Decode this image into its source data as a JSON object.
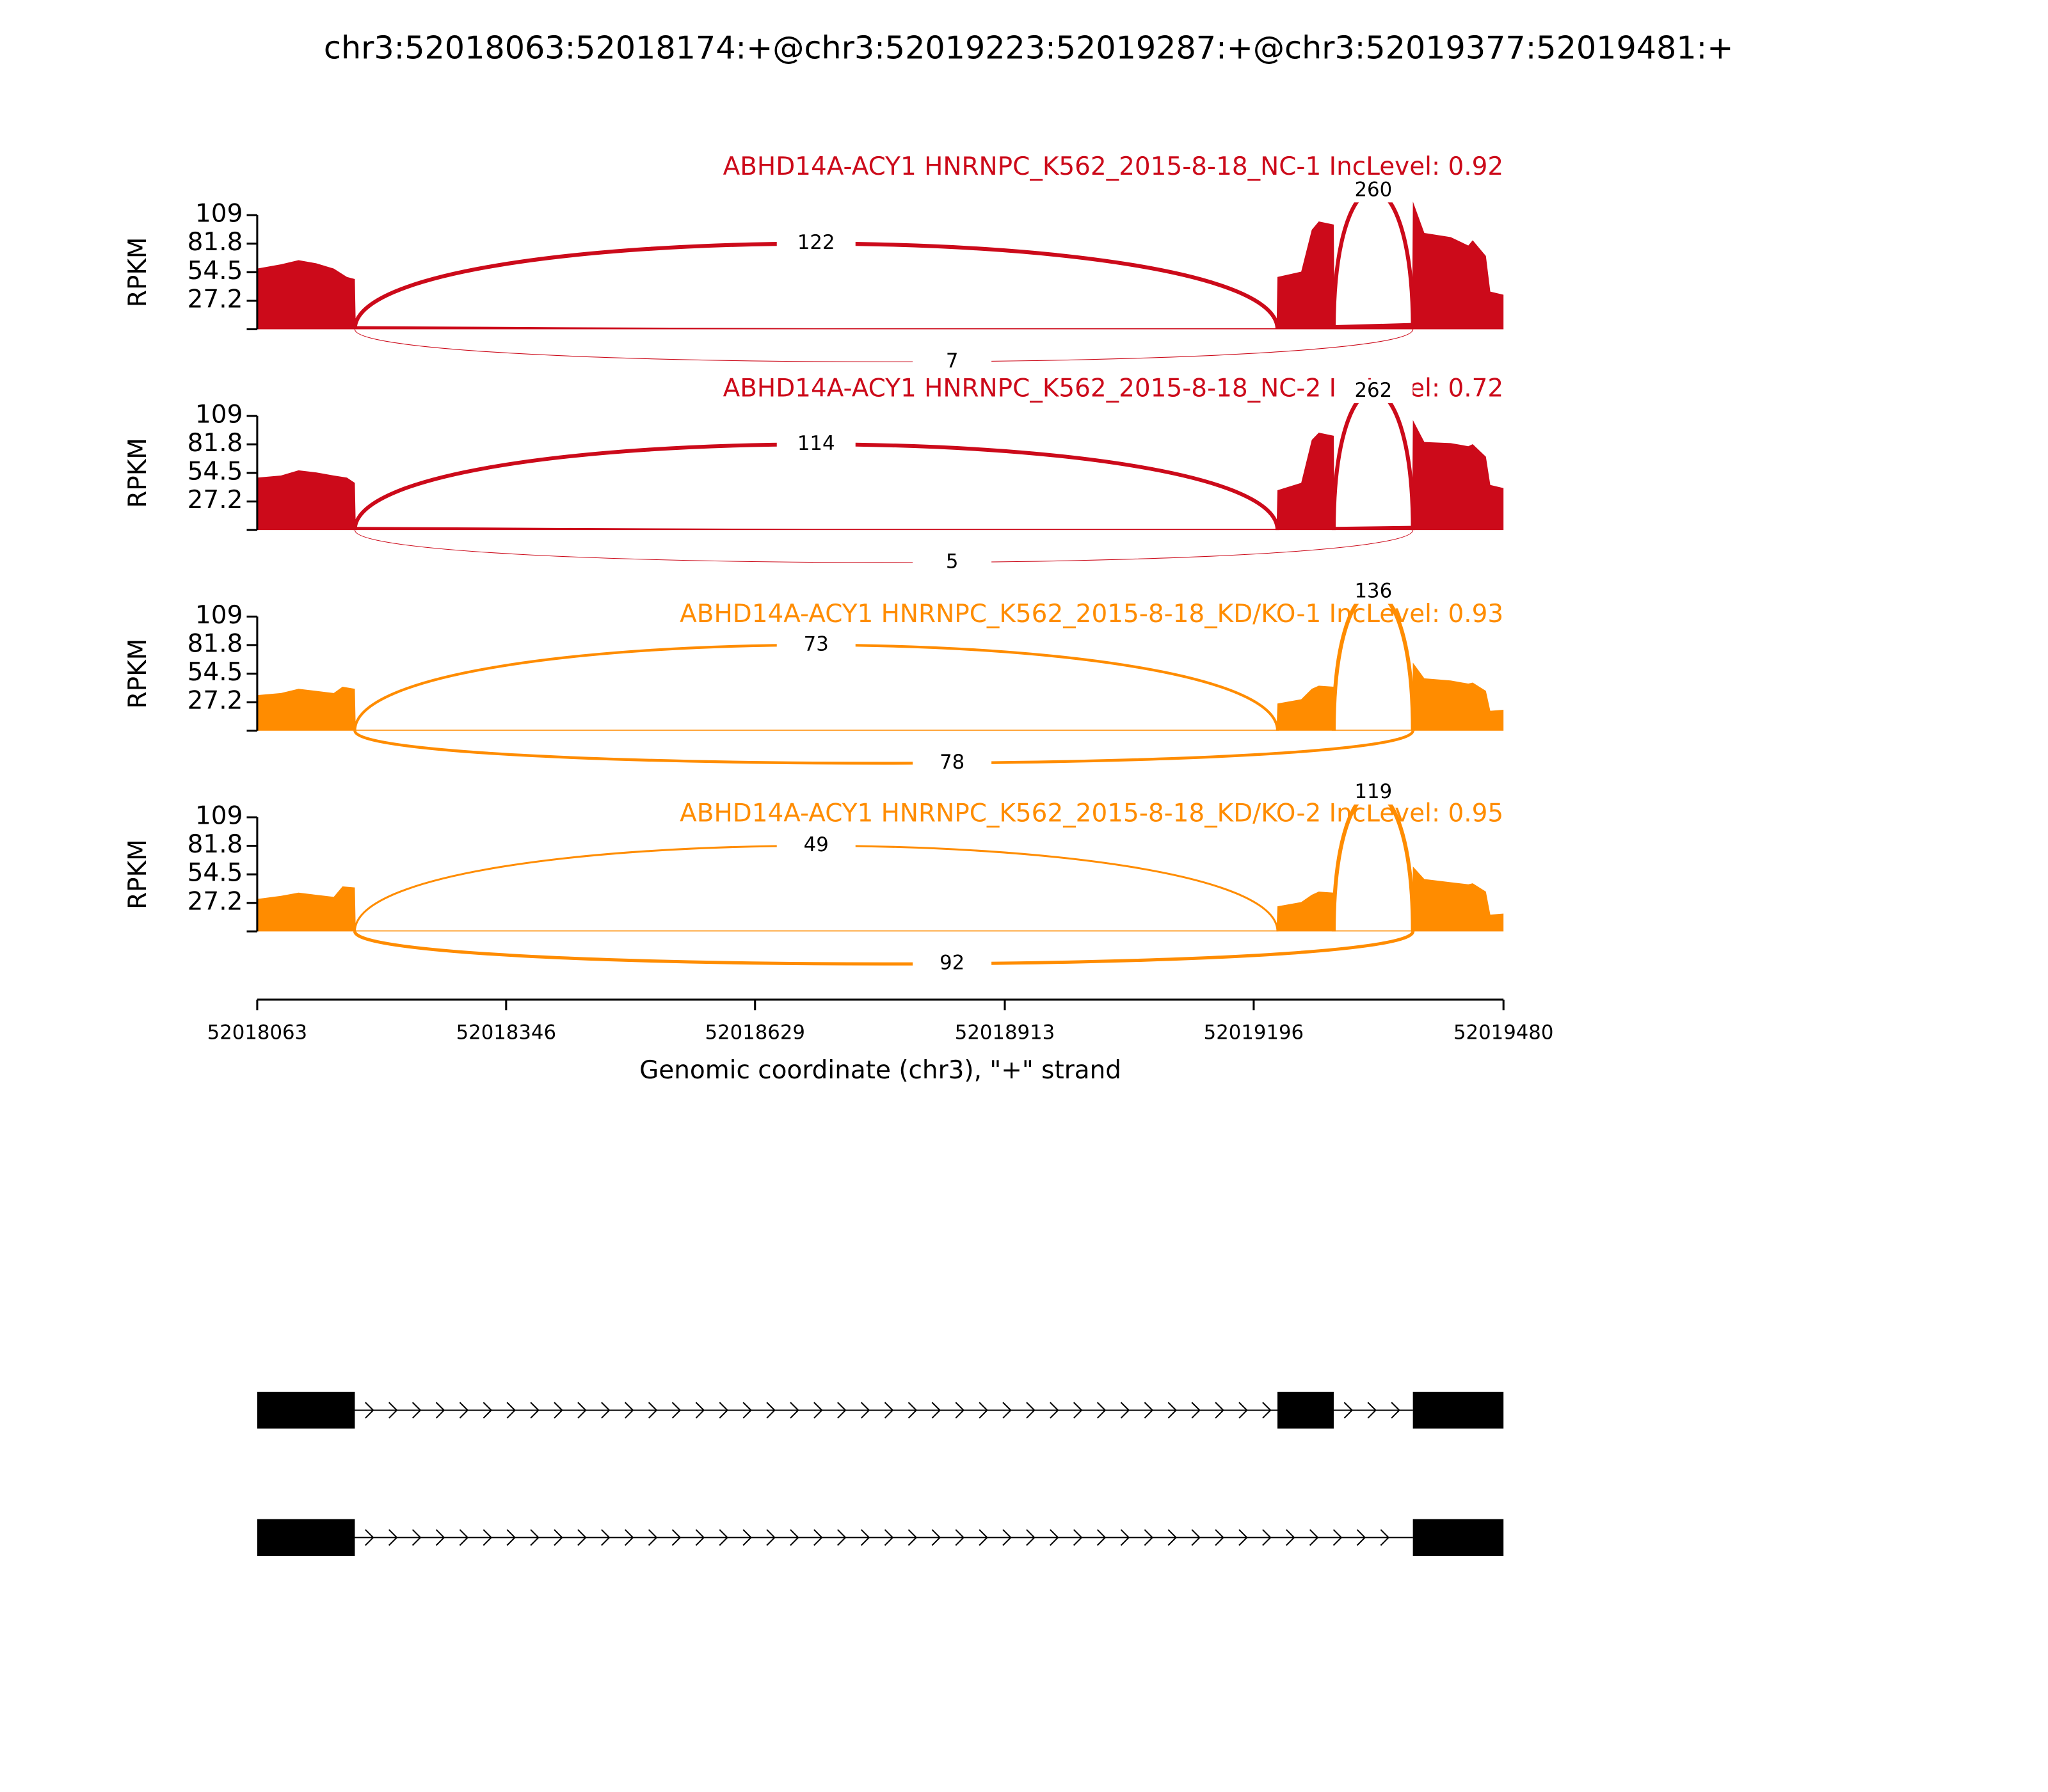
{
  "chart_data": {
    "type": "sashimi",
    "title": "chr3:52018063:52018174:+@chr3:52019223:52019287:+@chr3:52019377:52019481:+",
    "xlabel": "Genomic coordinate (chr3), \"+\" strand",
    "xlim": [
      52018063,
      52019480
    ],
    "xticks": [
      52018063,
      52018346,
      52018629,
      52018913,
      52019196,
      52019480
    ],
    "ylabel": "RPKM",
    "panels": [
      {
        "title": "ABHD14A-ACY1 HNRNPC_K562_2015-8-18_NC-1 IncLevel: 0.92",
        "color": "#cc0a1a",
        "ylim": [
          0,
          109
        ],
        "yticks": [
          27.2,
          54.5,
          81.8,
          109
        ],
        "coverage": {
          "x": [
            52018063,
            52018090,
            52018110,
            52018130,
            52018150,
            52018165,
            52018174,
            52018175,
            52018400,
            52018700,
            52019222,
            52019223,
            52019250,
            52019262,
            52019270,
            52019287,
            52019288,
            52019376,
            52019377,
            52019390,
            52019420,
            52019440,
            52019445,
            52019460,
            52019465,
            52019480
          ],
          "values": [
            58,
            62,
            66,
            63,
            58,
            50,
            48,
            3,
            2,
            1,
            1,
            50,
            55,
            95,
            103,
            100,
            4,
            6,
            122,
            92,
            88,
            80,
            85,
            70,
            36,
            33
          ]
        },
        "junctions": [
          {
            "start": 52018174,
            "end": 52019223,
            "count": 122,
            "side": "above"
          },
          {
            "start": 52019287,
            "end": 52019377,
            "count": 260,
            "side": "above"
          },
          {
            "start": 52018174,
            "end": 52019377,
            "count": 7,
            "side": "below"
          }
        ]
      },
      {
        "title": "ABHD14A-ACY1 HNRNPC_K562_2015-8-18_NC-2 IncLevel: 0.72",
        "color": "#cc0a1a",
        "ylim": [
          0,
          109
        ],
        "yticks": [
          27.2,
          54.5,
          81.8,
          109
        ],
        "coverage": {
          "x": [
            52018063,
            52018090,
            52018110,
            52018130,
            52018150,
            52018165,
            52018174,
            52018175,
            52018400,
            52018700,
            52019222,
            52019223,
            52019250,
            52019262,
            52019270,
            52019287,
            52019288,
            52019376,
            52019377,
            52019390,
            52019420,
            52019440,
            52019445,
            52019460,
            52019465,
            52019480
          ],
          "values": [
            50,
            52,
            57,
            55,
            52,
            50,
            45,
            3,
            2,
            1,
            1,
            38,
            45,
            86,
            93,
            90,
            3,
            4,
            105,
            84,
            83,
            80,
            82,
            70,
            43,
            40
          ]
        },
        "junctions": [
          {
            "start": 52018174,
            "end": 52019223,
            "count": 114,
            "side": "above"
          },
          {
            "start": 52019287,
            "end": 52019377,
            "count": 262,
            "side": "above"
          },
          {
            "start": 52018174,
            "end": 52019377,
            "count": 5,
            "side": "below"
          }
        ]
      },
      {
        "title": "ABHD14A-ACY1 HNRNPC_K562_2015-8-18_KD/KO-1 IncLevel: 0.93",
        "color": "#ff8c00",
        "ylim": [
          0,
          109
        ],
        "yticks": [
          27.2,
          54.5,
          81.8,
          109
        ],
        "coverage": {
          "x": [
            52018063,
            52018090,
            52018110,
            52018130,
            52018150,
            52018160,
            52018174,
            52018175,
            52018400,
            52018700,
            52019222,
            52019223,
            52019250,
            52019262,
            52019270,
            52019287,
            52019288,
            52019376,
            52019377,
            52019390,
            52019420,
            52019440,
            52019445,
            52019460,
            52019465,
            52019480
          ],
          "values": [
            34,
            36,
            40,
            38,
            36,
            42,
            40,
            1,
            1,
            1,
            1,
            26,
            30,
            40,
            43,
            42,
            1,
            1,
            65,
            50,
            48,
            45,
            46,
            38,
            19,
            20
          ]
        },
        "junctions": [
          {
            "start": 52018174,
            "end": 52019223,
            "count": 73,
            "side": "above"
          },
          {
            "start": 52019287,
            "end": 52019377,
            "count": 136,
            "side": "above"
          },
          {
            "start": 52018174,
            "end": 52019377,
            "count": 78,
            "side": "below"
          }
        ]
      },
      {
        "title": "ABHD14A-ACY1 HNRNPC_K562_2015-8-18_KD/KO-2 IncLevel: 0.95",
        "color": "#ff8c00",
        "ylim": [
          0,
          109
        ],
        "yticks": [
          27.2,
          54.5,
          81.8,
          109
        ],
        "coverage": {
          "x": [
            52018063,
            52018090,
            52018110,
            52018130,
            52018150,
            52018160,
            52018174,
            52018175,
            52018400,
            52018700,
            52019222,
            52019223,
            52019250,
            52019262,
            52019270,
            52019287,
            52019288,
            52019376,
            52019377,
            52019390,
            52019420,
            52019440,
            52019445,
            52019460,
            52019465,
            52019480
          ],
          "values": [
            31,
            34,
            37,
            35,
            33,
            43,
            42,
            1,
            1,
            1,
            1,
            24,
            28,
            35,
            38,
            37,
            1,
            1,
            62,
            50,
            47,
            45,
            46,
            38,
            16,
            17
          ]
        },
        "junctions": [
          {
            "start": 52018174,
            "end": 52019223,
            "count": 49,
            "side": "above"
          },
          {
            "start": 52019287,
            "end": 52019377,
            "count": 119,
            "side": "above"
          },
          {
            "start": 52018174,
            "end": 52019377,
            "count": 92,
            "side": "below"
          }
        ]
      }
    ],
    "gene_models": [
      {
        "exons": [
          [
            52018063,
            52018174
          ],
          [
            52019223,
            52019287
          ],
          [
            52019377,
            52019480
          ]
        ]
      },
      {
        "exons": [
          [
            52018063,
            52018174
          ],
          [
            52019377,
            52019480
          ]
        ]
      }
    ]
  }
}
